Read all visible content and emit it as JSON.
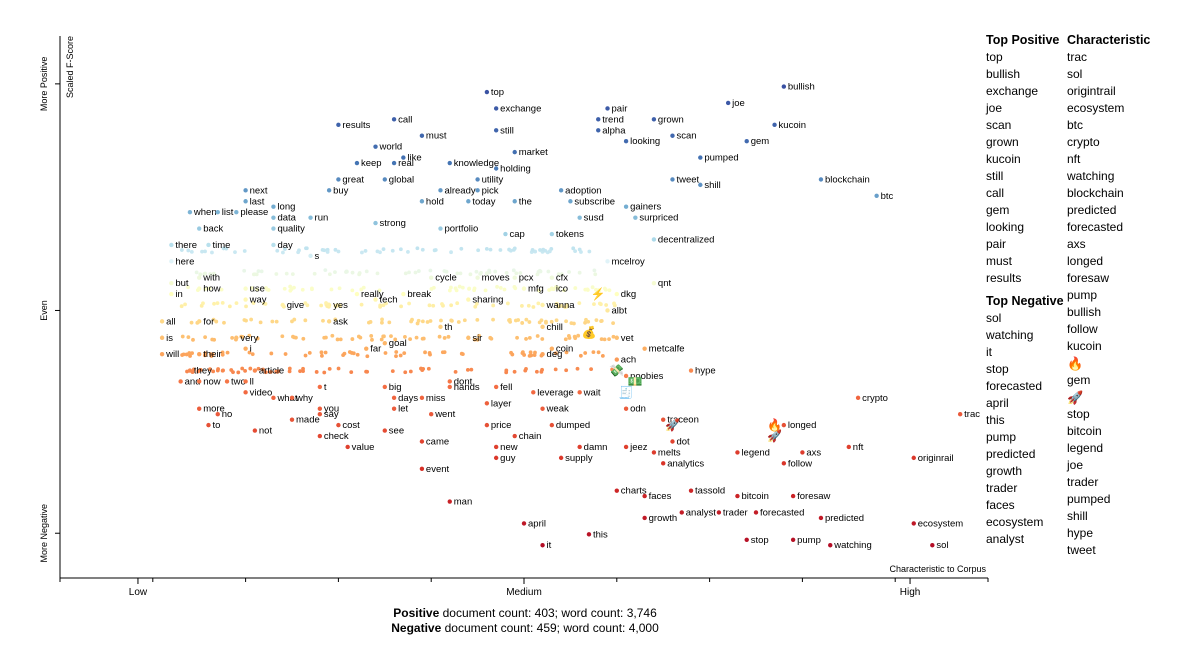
{
  "chart_data": {
    "type": "scatter",
    "xlabel": "Characteristic to Corpus",
    "x_ticks": [
      "Low",
      "Medium",
      "High"
    ],
    "ylabel_top": "Scaled F-Score",
    "y_ticks": [
      "More Positive",
      "Even",
      "More Negative"
    ],
    "xlim": [
      0,
      1
    ],
    "ylim": [
      0,
      1
    ],
    "labeled_points": [
      {
        "term": "top",
        "x": 0.46,
        "y": 0.89
      },
      {
        "term": "bullish",
        "x": 0.78,
        "y": 0.9
      },
      {
        "term": "joe",
        "x": 0.72,
        "y": 0.87
      },
      {
        "term": "exchange",
        "x": 0.47,
        "y": 0.86
      },
      {
        "term": "pair",
        "x": 0.59,
        "y": 0.86
      },
      {
        "term": "trend",
        "x": 0.58,
        "y": 0.84
      },
      {
        "term": "grown",
        "x": 0.64,
        "y": 0.84
      },
      {
        "term": "results",
        "x": 0.3,
        "y": 0.83
      },
      {
        "term": "call",
        "x": 0.36,
        "y": 0.84
      },
      {
        "term": "kucoin",
        "x": 0.77,
        "y": 0.83
      },
      {
        "term": "still",
        "x": 0.47,
        "y": 0.82
      },
      {
        "term": "alpha",
        "x": 0.58,
        "y": 0.82
      },
      {
        "term": "must",
        "x": 0.39,
        "y": 0.81
      },
      {
        "term": "scan",
        "x": 0.66,
        "y": 0.81
      },
      {
        "term": "gem",
        "x": 0.74,
        "y": 0.8
      },
      {
        "term": "looking",
        "x": 0.61,
        "y": 0.8
      },
      {
        "term": "world",
        "x": 0.34,
        "y": 0.79
      },
      {
        "term": "like",
        "x": 0.37,
        "y": 0.77
      },
      {
        "term": "market",
        "x": 0.49,
        "y": 0.78
      },
      {
        "term": "pumped",
        "x": 0.69,
        "y": 0.77
      },
      {
        "term": "keep",
        "x": 0.32,
        "y": 0.76
      },
      {
        "term": "real",
        "x": 0.36,
        "y": 0.76
      },
      {
        "term": "knowledge",
        "x": 0.42,
        "y": 0.76
      },
      {
        "term": "holding",
        "x": 0.47,
        "y": 0.75
      },
      {
        "term": "blockchain",
        "x": 0.82,
        "y": 0.73
      },
      {
        "term": "great",
        "x": 0.3,
        "y": 0.73
      },
      {
        "term": "global",
        "x": 0.35,
        "y": 0.73
      },
      {
        "term": "utility",
        "x": 0.45,
        "y": 0.73
      },
      {
        "term": "tweet",
        "x": 0.66,
        "y": 0.73
      },
      {
        "term": "shill",
        "x": 0.69,
        "y": 0.72
      },
      {
        "term": "next",
        "x": 0.2,
        "y": 0.71
      },
      {
        "term": "buy",
        "x": 0.29,
        "y": 0.71
      },
      {
        "term": "already",
        "x": 0.41,
        "y": 0.71
      },
      {
        "term": "pick",
        "x": 0.45,
        "y": 0.71
      },
      {
        "term": "adoption",
        "x": 0.54,
        "y": 0.71
      },
      {
        "term": "btc",
        "x": 0.88,
        "y": 0.7
      },
      {
        "term": "last",
        "x": 0.2,
        "y": 0.69
      },
      {
        "term": "hold",
        "x": 0.39,
        "y": 0.69
      },
      {
        "term": "today",
        "x": 0.44,
        "y": 0.69
      },
      {
        "term": "the",
        "x": 0.49,
        "y": 0.69
      },
      {
        "term": "subscribe",
        "x": 0.55,
        "y": 0.69
      },
      {
        "term": "gainers",
        "x": 0.61,
        "y": 0.68
      },
      {
        "term": "when",
        "x": 0.14,
        "y": 0.67
      },
      {
        "term": "list",
        "x": 0.17,
        "y": 0.67
      },
      {
        "term": "please",
        "x": 0.19,
        "y": 0.67
      },
      {
        "term": "long",
        "x": 0.23,
        "y": 0.68
      },
      {
        "term": "run",
        "x": 0.27,
        "y": 0.66
      },
      {
        "term": "strong",
        "x": 0.34,
        "y": 0.65
      },
      {
        "term": "susd",
        "x": 0.56,
        "y": 0.66
      },
      {
        "term": "surpriced",
        "x": 0.62,
        "y": 0.66
      },
      {
        "term": "data",
        "x": 0.23,
        "y": 0.66
      },
      {
        "term": "portfolio",
        "x": 0.41,
        "y": 0.64
      },
      {
        "term": "back",
        "x": 0.15,
        "y": 0.64
      },
      {
        "term": "quality",
        "x": 0.23,
        "y": 0.64
      },
      {
        "term": "cap",
        "x": 0.48,
        "y": 0.63
      },
      {
        "term": "tokens",
        "x": 0.53,
        "y": 0.63
      },
      {
        "term": "there",
        "x": 0.12,
        "y": 0.61
      },
      {
        "term": "time",
        "x": 0.16,
        "y": 0.61
      },
      {
        "term": "day",
        "x": 0.23,
        "y": 0.61
      },
      {
        "term": "decentralized",
        "x": 0.64,
        "y": 0.62
      },
      {
        "term": "s",
        "x": 0.27,
        "y": 0.59
      },
      {
        "term": "here",
        "x": 0.12,
        "y": 0.58
      },
      {
        "term": "mcelroy",
        "x": 0.59,
        "y": 0.58
      },
      {
        "term": "with",
        "x": 0.15,
        "y": 0.55
      },
      {
        "term": "but",
        "x": 0.12,
        "y": 0.54
      },
      {
        "term": "cycle",
        "x": 0.4,
        "y": 0.55
      },
      {
        "term": "moves",
        "x": 0.45,
        "y": 0.55
      },
      {
        "term": "pcx",
        "x": 0.49,
        "y": 0.55
      },
      {
        "term": "cfx",
        "x": 0.53,
        "y": 0.55
      },
      {
        "term": "qnt",
        "x": 0.64,
        "y": 0.54
      },
      {
        "term": "how",
        "x": 0.15,
        "y": 0.53
      },
      {
        "term": "use",
        "x": 0.2,
        "y": 0.53
      },
      {
        "term": "mfg",
        "x": 0.5,
        "y": 0.53
      },
      {
        "term": "ico",
        "x": 0.53,
        "y": 0.53
      },
      {
        "term": "in",
        "x": 0.12,
        "y": 0.52
      },
      {
        "term": "really",
        "x": 0.32,
        "y": 0.52
      },
      {
        "term": "break",
        "x": 0.37,
        "y": 0.52
      },
      {
        "term": "dkg",
        "x": 0.6,
        "y": 0.52
      },
      {
        "term": "way",
        "x": 0.2,
        "y": 0.51
      },
      {
        "term": "tech",
        "x": 0.34,
        "y": 0.51
      },
      {
        "term": "sharing",
        "x": 0.44,
        "y": 0.51
      },
      {
        "term": "give",
        "x": 0.24,
        "y": 0.5
      },
      {
        "term": "yes",
        "x": 0.29,
        "y": 0.5
      },
      {
        "term": "wanna",
        "x": 0.52,
        "y": 0.5
      },
      {
        "term": "albt",
        "x": 0.59,
        "y": 0.49
      },
      {
        "term": "for",
        "x": 0.15,
        "y": 0.47
      },
      {
        "term": "all",
        "x": 0.11,
        "y": 0.47
      },
      {
        "term": "ask",
        "x": 0.29,
        "y": 0.47
      },
      {
        "term": "th",
        "x": 0.41,
        "y": 0.46
      },
      {
        "term": "chill",
        "x": 0.52,
        "y": 0.46
      },
      {
        "term": "is",
        "x": 0.11,
        "y": 0.44
      },
      {
        "term": "very",
        "x": 0.19,
        "y": 0.44
      },
      {
        "term": "sir",
        "x": 0.44,
        "y": 0.44
      },
      {
        "term": "vet",
        "x": 0.6,
        "y": 0.44
      },
      {
        "term": "i",
        "x": 0.2,
        "y": 0.42
      },
      {
        "term": "goal",
        "x": 0.35,
        "y": 0.43
      },
      {
        "term": "coin",
        "x": 0.53,
        "y": 0.42
      },
      {
        "term": "metcalfe",
        "x": 0.63,
        "y": 0.42
      },
      {
        "term": "will",
        "x": 0.11,
        "y": 0.41
      },
      {
        "term": "their",
        "x": 0.15,
        "y": 0.41
      },
      {
        "term": "far",
        "x": 0.33,
        "y": 0.42
      },
      {
        "term": "deg",
        "x": 0.52,
        "y": 0.41
      },
      {
        "term": "ach",
        "x": 0.6,
        "y": 0.4
      },
      {
        "term": "they",
        "x": 0.14,
        "y": 0.38
      },
      {
        "term": "article",
        "x": 0.21,
        "y": 0.38
      },
      {
        "term": "hype",
        "x": 0.68,
        "y": 0.38
      },
      {
        "term": "noobies",
        "x": 0.61,
        "y": 0.37
      },
      {
        "term": "and",
        "x": 0.13,
        "y": 0.36
      },
      {
        "term": "now",
        "x": 0.15,
        "y": 0.36
      },
      {
        "term": "two",
        "x": 0.18,
        "y": 0.36
      },
      {
        "term": "ll",
        "x": 0.2,
        "y": 0.36
      },
      {
        "term": "dont",
        "x": 0.42,
        "y": 0.36
      },
      {
        "term": "t",
        "x": 0.28,
        "y": 0.35
      },
      {
        "term": "big",
        "x": 0.35,
        "y": 0.35
      },
      {
        "term": "hands",
        "x": 0.42,
        "y": 0.35
      },
      {
        "term": "fell",
        "x": 0.47,
        "y": 0.35
      },
      {
        "term": "leverage",
        "x": 0.51,
        "y": 0.34
      },
      {
        "term": "wait",
        "x": 0.56,
        "y": 0.34
      },
      {
        "term": "video",
        "x": 0.2,
        "y": 0.34
      },
      {
        "term": "crypto",
        "x": 0.86,
        "y": 0.33
      },
      {
        "term": "what",
        "x": 0.23,
        "y": 0.33
      },
      {
        "term": "why",
        "x": 0.25,
        "y": 0.33
      },
      {
        "term": "days",
        "x": 0.36,
        "y": 0.33
      },
      {
        "term": "miss",
        "x": 0.39,
        "y": 0.33
      },
      {
        "term": "layer",
        "x": 0.46,
        "y": 0.32
      },
      {
        "term": "odn",
        "x": 0.61,
        "y": 0.31
      },
      {
        "term": "you",
        "x": 0.28,
        "y": 0.31
      },
      {
        "term": "more",
        "x": 0.15,
        "y": 0.31
      },
      {
        "term": "let",
        "x": 0.36,
        "y": 0.31
      },
      {
        "term": "weak",
        "x": 0.52,
        "y": 0.31
      },
      {
        "term": "no",
        "x": 0.17,
        "y": 0.3
      },
      {
        "term": "trac",
        "x": 0.97,
        "y": 0.3
      },
      {
        "term": "say",
        "x": 0.28,
        "y": 0.3
      },
      {
        "term": "went",
        "x": 0.4,
        "y": 0.3
      },
      {
        "term": "made",
        "x": 0.25,
        "y": 0.29
      },
      {
        "term": "price",
        "x": 0.46,
        "y": 0.28
      },
      {
        "term": "dumped",
        "x": 0.53,
        "y": 0.28
      },
      {
        "term": "traceon",
        "x": 0.65,
        "y": 0.29
      },
      {
        "term": "cost",
        "x": 0.3,
        "y": 0.28
      },
      {
        "term": "longed",
        "x": 0.78,
        "y": 0.28
      },
      {
        "term": "to",
        "x": 0.16,
        "y": 0.28
      },
      {
        "term": "not",
        "x": 0.21,
        "y": 0.27
      },
      {
        "term": "see",
        "x": 0.35,
        "y": 0.27
      },
      {
        "term": "chain",
        "x": 0.49,
        "y": 0.26
      },
      {
        "term": "dot",
        "x": 0.66,
        "y": 0.25
      },
      {
        "term": "check",
        "x": 0.28,
        "y": 0.26
      },
      {
        "term": "came",
        "x": 0.39,
        "y": 0.25
      },
      {
        "term": "value",
        "x": 0.31,
        "y": 0.24
      },
      {
        "term": "new",
        "x": 0.47,
        "y": 0.24
      },
      {
        "term": "damn",
        "x": 0.56,
        "y": 0.24
      },
      {
        "term": "jeez",
        "x": 0.61,
        "y": 0.24
      },
      {
        "term": "melts",
        "x": 0.64,
        "y": 0.23
      },
      {
        "term": "nft",
        "x": 0.85,
        "y": 0.24
      },
      {
        "term": "legend",
        "x": 0.73,
        "y": 0.23
      },
      {
        "term": "axs",
        "x": 0.8,
        "y": 0.23
      },
      {
        "term": "guy",
        "x": 0.47,
        "y": 0.22
      },
      {
        "term": "supply",
        "x": 0.54,
        "y": 0.22
      },
      {
        "term": "originrail",
        "x": 0.92,
        "y": 0.22
      },
      {
        "term": "analytics",
        "x": 0.65,
        "y": 0.21
      },
      {
        "term": "follow",
        "x": 0.78,
        "y": 0.21
      },
      {
        "term": "event",
        "x": 0.39,
        "y": 0.2
      },
      {
        "term": "charts",
        "x": 0.6,
        "y": 0.16
      },
      {
        "term": "tassold",
        "x": 0.68,
        "y": 0.16
      },
      {
        "term": "bitcoin",
        "x": 0.73,
        "y": 0.15
      },
      {
        "term": "foresaw",
        "x": 0.79,
        "y": 0.15
      },
      {
        "term": "faces",
        "x": 0.63,
        "y": 0.15
      },
      {
        "term": "man",
        "x": 0.42,
        "y": 0.14
      },
      {
        "term": "analyst",
        "x": 0.67,
        "y": 0.12
      },
      {
        "term": "trader",
        "x": 0.71,
        "y": 0.12
      },
      {
        "term": "forecasted",
        "x": 0.75,
        "y": 0.12
      },
      {
        "term": "predicted",
        "x": 0.82,
        "y": 0.11
      },
      {
        "term": "growth",
        "x": 0.63,
        "y": 0.11
      },
      {
        "term": "ecosystem",
        "x": 0.92,
        "y": 0.1
      },
      {
        "term": "april",
        "x": 0.5,
        "y": 0.1
      },
      {
        "term": "this",
        "x": 0.57,
        "y": 0.08
      },
      {
        "term": "pump",
        "x": 0.79,
        "y": 0.07
      },
      {
        "term": "stop",
        "x": 0.74,
        "y": 0.07
      },
      {
        "term": "it",
        "x": 0.52,
        "y": 0.06
      },
      {
        "term": "watching",
        "x": 0.83,
        "y": 0.06
      },
      {
        "term": "sol",
        "x": 0.94,
        "y": 0.06
      }
    ],
    "emoji_points": [
      {
        "glyph": "⚡",
        "x": 0.58,
        "y": 0.52
      },
      {
        "glyph": "💰",
        "x": 0.57,
        "y": 0.45
      },
      {
        "glyph": "💸",
        "x": 0.6,
        "y": 0.38
      },
      {
        "glyph": "💵",
        "x": 0.62,
        "y": 0.36
      },
      {
        "glyph": "🧾",
        "x": 0.61,
        "y": 0.34
      },
      {
        "glyph": "🚀",
        "x": 0.66,
        "y": 0.28
      },
      {
        "glyph": "🚀",
        "x": 0.77,
        "y": 0.26
      },
      {
        "glyph": "🔥",
        "x": 0.77,
        "y": 0.28
      }
    ]
  },
  "lists": {
    "top_positive": {
      "header": "Top Positive",
      "terms": [
        "top",
        "bullish",
        "exchange",
        "joe",
        "scan",
        "grown",
        "kucoin",
        "still",
        "call",
        "gem",
        "looking",
        "pair",
        "must",
        "results"
      ]
    },
    "top_negative": {
      "header": "Top Negative",
      "terms": [
        "sol",
        "watching",
        "it",
        "stop",
        "forecasted",
        "april",
        "this",
        "pump",
        "predicted",
        "growth",
        "trader",
        "faces",
        "ecosystem",
        "analyst"
      ]
    },
    "characteristic": {
      "header": "Characteristic",
      "terms": [
        "trac",
        "sol",
        "origintrail",
        "ecosystem",
        "btc",
        "crypto",
        "nft",
        "watching",
        "blockchain",
        "predicted",
        "forecasted",
        "axs",
        "longed",
        "foresaw",
        "pump",
        "bullish",
        "follow",
        "kucoin",
        "🔥",
        "gem",
        "🚀",
        "stop",
        "bitcoin",
        "legend",
        "joe",
        "trader",
        "pumped",
        "shill",
        "hype",
        "tweet"
      ]
    }
  },
  "counts": {
    "positive_label": "Positive",
    "positive_text": " document count: 403; word count: 3,746",
    "negative_label": "Negative",
    "negative_text": " document count: 459; word count: 4,000"
  }
}
